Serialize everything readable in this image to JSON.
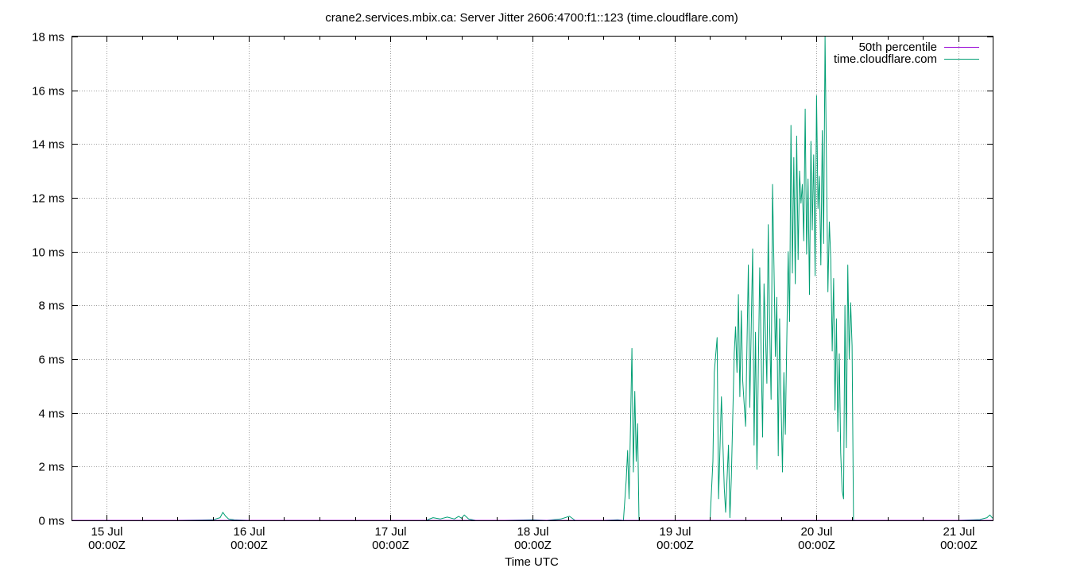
{
  "chart_data": {
    "type": "line",
    "title": "crane2.services.mbix.ca: Server Jitter 2606:4700:f1::123 (time.cloudflare.com)",
    "xlabel": "Time UTC",
    "ylabel": "",
    "grid": true,
    "legend_position": "top-right",
    "ylim": [
      0,
      18
    ],
    "yticks": [
      {
        "value": 0,
        "label": "0 ms"
      },
      {
        "value": 2,
        "label": "2 ms"
      },
      {
        "value": 4,
        "label": "4 ms"
      },
      {
        "value": 6,
        "label": "6 ms"
      },
      {
        "value": 8,
        "label": "8 ms"
      },
      {
        "value": 10,
        "label": "10 ms"
      },
      {
        "value": 12,
        "label": "12 ms"
      },
      {
        "value": 14,
        "label": "14 ms"
      },
      {
        "value": 16,
        "label": "16 ms"
      },
      {
        "value": 18,
        "label": "18 ms"
      }
    ],
    "xlim": [
      14.76,
      21.24
    ],
    "xticks": [
      {
        "value": 15,
        "line1": "15 Jul",
        "line2": "00:00Z"
      },
      {
        "value": 16,
        "line1": "16 Jul",
        "line2": "00:00Z"
      },
      {
        "value": 17,
        "line1": "17 Jul",
        "line2": "00:00Z"
      },
      {
        "value": 18,
        "line1": "18 Jul",
        "line2": "00:00Z"
      },
      {
        "value": 19,
        "line1": "19 Jul",
        "line2": "00:00Z"
      },
      {
        "value": 20,
        "line1": "20 Jul",
        "line2": "00:00Z"
      },
      {
        "value": 21,
        "line1": "21 Jul",
        "line2": "00:00Z"
      }
    ],
    "series": [
      {
        "name": "50th percentile",
        "color": "#9400d3",
        "x": [
          14.76,
          21.24
        ],
        "y": [
          0.0,
          0.0
        ]
      },
      {
        "name": "time.cloudflare.com",
        "color": "#009e73",
        "x": [
          14.76,
          15.5,
          15.75,
          15.8,
          15.82,
          15.84,
          15.86,
          15.9,
          16.0,
          16.6,
          17.25,
          17.3,
          17.35,
          17.4,
          17.45,
          17.48,
          17.5,
          17.52,
          17.55,
          17.6,
          17.8,
          18.0,
          18.1,
          18.2,
          18.26,
          18.3,
          18.5,
          18.6,
          18.64,
          18.66,
          18.67,
          18.68,
          18.69,
          18.7,
          18.71,
          18.72,
          18.73,
          18.74,
          18.75,
          18.76,
          18.77,
          18.78,
          18.8,
          18.9,
          19.1,
          19.25,
          19.27,
          19.28,
          19.3,
          19.31,
          19.33,
          19.35,
          19.36,
          19.38,
          19.39,
          19.4,
          19.42,
          19.43,
          19.44,
          19.45,
          19.46,
          19.47,
          19.48,
          19.5,
          19.51,
          19.52,
          19.53,
          19.55,
          19.56,
          19.57,
          19.58,
          19.6,
          19.61,
          19.62,
          19.63,
          19.65,
          19.66,
          19.67,
          19.68,
          19.69,
          19.7,
          19.71,
          19.72,
          19.73,
          19.74,
          19.75,
          19.76,
          19.77,
          19.78,
          19.8,
          19.81,
          19.82,
          19.83,
          19.84,
          19.85,
          19.86,
          19.87,
          19.88,
          19.89,
          19.9,
          19.91,
          19.92,
          19.93,
          19.94,
          19.95,
          19.96,
          19.97,
          19.98,
          19.99,
          20.0,
          20.01,
          20.02,
          20.03,
          20.04,
          20.05,
          20.06,
          20.07,
          20.08,
          20.09,
          20.1,
          20.11,
          20.12,
          20.13,
          20.14,
          20.15,
          20.16,
          20.17,
          20.18,
          20.19,
          20.2,
          20.21,
          20.22,
          20.23,
          20.24,
          20.25,
          20.26,
          21.0,
          21.15,
          21.2,
          21.22,
          21.24
        ],
        "y": [
          0.0,
          0.0,
          0.02,
          0.1,
          0.3,
          0.15,
          0.05,
          0.02,
          0.0,
          0.0,
          0.0,
          0.1,
          0.05,
          0.12,
          0.05,
          0.15,
          0.08,
          0.2,
          0.05,
          0.0,
          0.0,
          0.02,
          0.0,
          0.05,
          0.15,
          0.0,
          0.0,
          0.02,
          0.0,
          1.5,
          2.6,
          0.8,
          3.5,
          6.4,
          1.8,
          4.8,
          2.2,
          3.6,
          0.0,
          0.0,
          0.0,
          0.0,
          0.0,
          0.0,
          0.0,
          0.0,
          2.2,
          5.5,
          6.8,
          0.8,
          4.6,
          1.2,
          0.3,
          2.8,
          0.1,
          1.6,
          6.2,
          7.2,
          5.5,
          8.4,
          4.6,
          7.8,
          5.2,
          3.5,
          6.4,
          9.5,
          4.2,
          10.1,
          2.8,
          7.0,
          1.9,
          9.4,
          6.2,
          3.1,
          8.8,
          5.1,
          11.0,
          7.2,
          4.5,
          12.5,
          9.5,
          6.1,
          8.3,
          2.4,
          7.5,
          4.4,
          1.8,
          5.5,
          3.2,
          10.0,
          7.4,
          14.7,
          9.2,
          13.5,
          8.8,
          14.3,
          9.7,
          13.0,
          11.8,
          12.5,
          10.4,
          15.3,
          9.9,
          12.7,
          8.4,
          14.1,
          10.8,
          13.6,
          9.1,
          15.8,
          11.6,
          12.8,
          9.5,
          14.5,
          10.3,
          18.0,
          13.2,
          8.5,
          11.1,
          9.7,
          6.3,
          9.0,
          4.1,
          7.5,
          3.3,
          6.2,
          2.5,
          1.1,
          0.8,
          8.0,
          2.7,
          9.5,
          6.0,
          8.1,
          6.5,
          0.0,
          0.0,
          0.03,
          0.1,
          0.2,
          0.08
        ]
      }
    ]
  }
}
